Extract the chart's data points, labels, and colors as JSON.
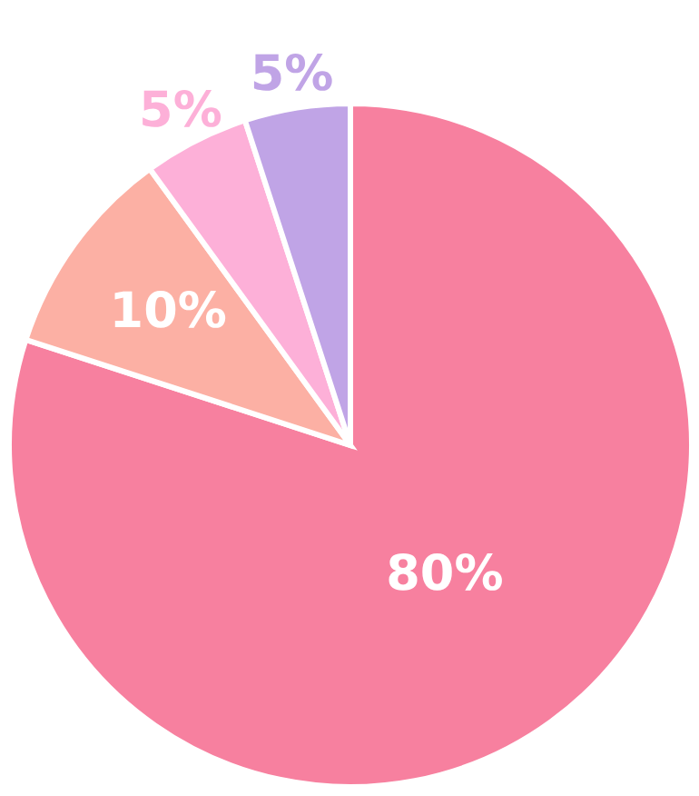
{
  "chart_data": {
    "type": "pie",
    "categories": [
      null,
      null,
      null,
      null
    ],
    "values": [
      80,
      10,
      5,
      5
    ],
    "colors": [
      "#f7809f",
      "#fcb0a4",
      "#fdb0d8",
      "#c0a4e6"
    ],
    "value_labels": [
      "80%",
      "10%",
      "5%",
      "5%"
    ]
  }
}
